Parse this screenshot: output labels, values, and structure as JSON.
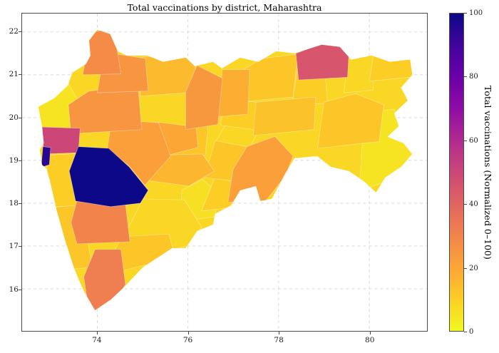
{
  "chart_data": {
    "type": "heatmap",
    "subtype": "choropleth",
    "title": "Total vaccinations by district, Maharashtra",
    "colorbar_label": "Total vaccinations (Normalized 0–100)",
    "value_range": [
      0,
      100
    ],
    "colorbar_ticks": [
      0,
      20,
      40,
      60,
      80,
      100
    ],
    "x_axis": {
      "ticks": [
        74,
        76,
        78,
        80
      ],
      "range": [
        72.34,
        81.27
      ]
    },
    "y_axis": {
      "ticks": [
        16,
        17,
        18,
        19,
        20,
        21,
        22
      ],
      "range": [
        15.02,
        22.43
      ]
    },
    "grid": {
      "style": "dashed",
      "color": "#d9d9d9"
    },
    "spine_color": "#4a4a4a",
    "colormap": {
      "name": "plasma_r",
      "stops_low_to_high": [
        "#f0f921",
        "#fcce25",
        "#fca636",
        "#f2844b",
        "#e16462",
        "#cc4778",
        "#b12a90",
        "#8f0da4",
        "#6a00a8",
        "#41049d",
        "#0d0887"
      ]
    },
    "base_value": 8,
    "districts": [
      {
        "id": "d01",
        "value": 5
      },
      {
        "id": "d02",
        "value": 50
      },
      {
        "id": "d03",
        "value": 95
      },
      {
        "id": "d04",
        "value": 10
      },
      {
        "id": "d05",
        "value": 12
      },
      {
        "id": "d06",
        "value": 8
      },
      {
        "id": "d07",
        "value": 25
      },
      {
        "id": "d08",
        "value": 25
      },
      {
        "id": "d09",
        "value": 28
      },
      {
        "id": "d10",
        "value": 15
      },
      {
        "id": "d11",
        "value": 100
      },
      {
        "id": "d12",
        "value": 22
      },
      {
        "id": "d13",
        "value": 30
      },
      {
        "id": "d14",
        "value": 12
      },
      {
        "id": "d15",
        "value": 32
      },
      {
        "id": "d16",
        "value": 8
      },
      {
        "id": "d17",
        "value": 20
      },
      {
        "id": "d18",
        "value": 12
      },
      {
        "id": "d19",
        "value": 16
      },
      {
        "id": "d20",
        "value": 6
      },
      {
        "id": "d21",
        "value": 10
      },
      {
        "id": "d22",
        "value": 22
      },
      {
        "id": "d23",
        "value": 12
      },
      {
        "id": "d24",
        "value": 8
      },
      {
        "id": "d25",
        "value": 24
      },
      {
        "id": "d26",
        "value": 18
      },
      {
        "id": "d27",
        "value": 10
      },
      {
        "id": "d28",
        "value": 12
      },
      {
        "id": "d29",
        "value": 13
      },
      {
        "id": "d30",
        "value": 10
      },
      {
        "id": "d31",
        "value": 45
      },
      {
        "id": "d32",
        "value": 8
      },
      {
        "id": "d33",
        "value": 10
      },
      {
        "id": "d34",
        "value": 12
      },
      {
        "id": "d35",
        "value": 5
      }
    ]
  }
}
